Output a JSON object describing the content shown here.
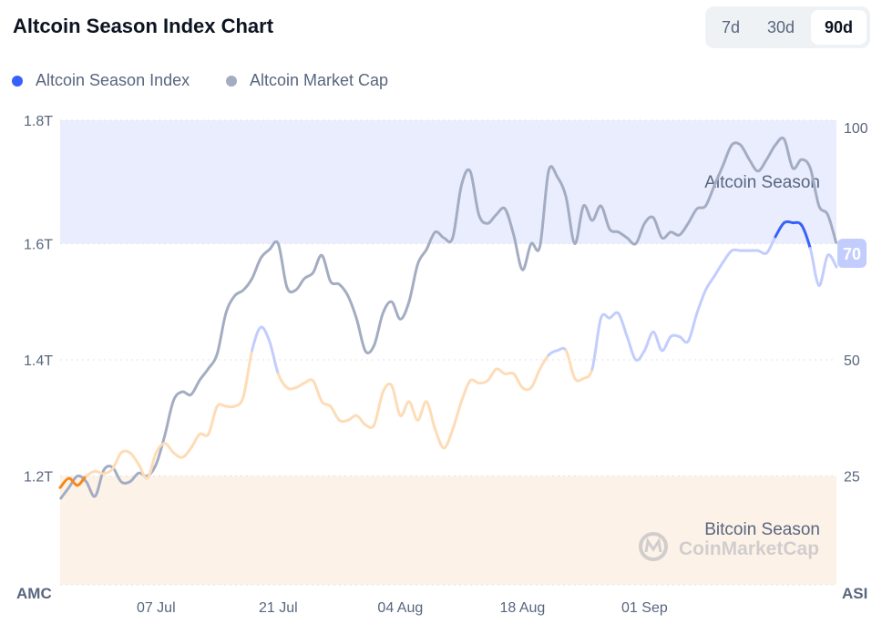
{
  "header": {
    "title": "Altcoin Season Index Chart",
    "ranges": [
      "7d",
      "30d",
      "90d"
    ],
    "active_range": "90d"
  },
  "legend": [
    {
      "label": "Altcoin Season Index",
      "color": "#3861fb"
    },
    {
      "label": "Altcoin Market Cap",
      "color": "#a3acc2"
    }
  ],
  "chart_data": {
    "type": "line",
    "title": "Altcoin Season Index Chart",
    "left_axis": {
      "label": "AMC",
      "ticks": [
        "1.8T",
        "1.6T",
        "1.4T",
        "1.2T"
      ],
      "tick_values": [
        1.8,
        1.6,
        1.4,
        1.2
      ],
      "range": [
        1.0,
        1.8
      ]
    },
    "right_axis": {
      "label": "ASI",
      "ticks": [
        "100",
        "50",
        "25"
      ],
      "tick_values": [
        100,
        50,
        25
      ],
      "range": [
        0,
        100
      ]
    },
    "x_ticks": [
      {
        "label": "07 Jul",
        "day": 11
      },
      {
        "label": "21 Jul",
        "day": 25
      },
      {
        "label": "04 Aug",
        "day": 39
      },
      {
        "label": "18 Aug",
        "day": 53
      },
      {
        "label": "01 Sep",
        "day": 67
      }
    ],
    "zones": [
      {
        "label": "Altcoin Season",
        "from": 75,
        "to": 100,
        "color": "#e9edfe"
      },
      {
        "label": "Bitcoin Season",
        "from": 0,
        "to": 25,
        "color": "#fdf2e8"
      }
    ],
    "current_value_label": "70",
    "watermark": "CoinMarketCap",
    "series": [
      {
        "name": "Altcoin Market Cap",
        "unit": "T",
        "values": [
          1.16,
          1.18,
          1.2,
          1.19,
          1.165,
          1.21,
          1.215,
          1.19,
          1.19,
          1.205,
          1.2,
          1.22,
          1.27,
          1.33,
          1.345,
          1.34,
          1.365,
          1.385,
          1.41,
          1.48,
          1.51,
          1.52,
          1.54,
          1.575,
          1.59,
          1.6,
          1.525,
          1.52,
          1.54,
          1.55,
          1.58,
          1.535,
          1.53,
          1.51,
          1.47,
          1.415,
          1.425,
          1.48,
          1.5,
          1.47,
          1.5,
          1.565,
          1.59,
          1.62,
          1.61,
          1.61,
          1.7,
          1.725,
          1.65,
          1.635,
          1.65,
          1.66,
          1.615,
          1.555,
          1.6,
          1.595,
          1.725,
          1.715,
          1.68,
          1.6,
          1.665,
          1.64,
          1.665,
          1.625,
          1.62,
          1.61,
          1.6,
          1.635,
          1.645,
          1.61,
          1.62,
          1.615,
          1.635,
          1.66,
          1.665,
          1.7,
          1.735,
          1.77,
          1.77,
          1.745,
          1.725,
          1.745,
          1.77,
          1.78,
          1.73,
          1.745,
          1.73,
          1.665,
          1.65,
          1.6
        ]
      },
      {
        "name": "Altcoin Season Index",
        "values": [
          22.5,
          24.5,
          23,
          25,
          26,
          25.5,
          26.5,
          30,
          30,
          27.5,
          24.5,
          30,
          32,
          30,
          29,
          31,
          34,
          34,
          40,
          40,
          40,
          42,
          52,
          57,
          54,
          47,
          44,
          44,
          45,
          45.5,
          41,
          40,
          37,
          37,
          38,
          36,
          36,
          43,
          44.5,
          38,
          41,
          37,
          41,
          35,
          31,
          35,
          41,
          45.5,
          45,
          45.5,
          48,
          47,
          47,
          44,
          44,
          48,
          51,
          52,
          52,
          46,
          46,
          48,
          59,
          59,
          60,
          55,
          50,
          52,
          56,
          52,
          55,
          55,
          54,
          60,
          65,
          68,
          71,
          73.5,
          73.5,
          73.5,
          73.5,
          73,
          76.5,
          79.5,
          79.5,
          79,
          74,
          66,
          72.5,
          70
        ]
      }
    ]
  }
}
